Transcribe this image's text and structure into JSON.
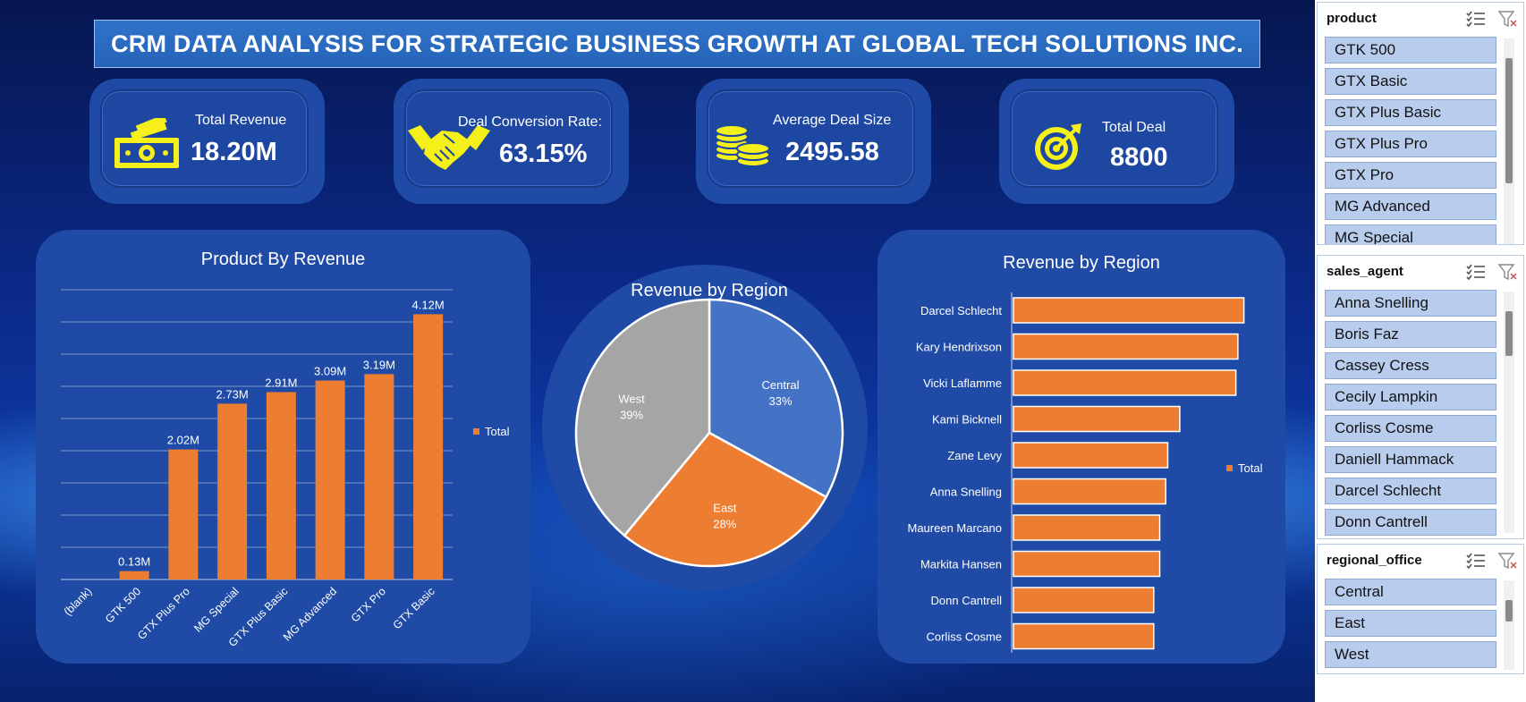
{
  "title": "CRM DATA ANALYSIS FOR STRATEGIC BUSINESS GROWTH AT GLOBAL TECH SOLUTIONS INC.",
  "kpis": {
    "revenue": {
      "label": "Total Revenue",
      "value": "18.20M",
      "icon": "cash-icon"
    },
    "conversion": {
      "label": "Deal Conversion Rate:",
      "value": "63.15%",
      "icon": "handshake-icon"
    },
    "avg_deal": {
      "label": "Average Deal Size",
      "value": "2495.58",
      "icon": "coins-icon"
    },
    "total_deal": {
      "label": "Total  Deal",
      "value": "8800",
      "icon": "target-icon"
    }
  },
  "colors": {
    "accent": "#ed7d31",
    "panel": "#1f4ba6",
    "kpi_icon": "#f5ef1a",
    "pie_central": "#4472c4",
    "pie_east": "#ed7d31",
    "pie_west": "#a5a5a5"
  },
  "chart_data": [
    {
      "type": "bar",
      "title": "Product By Revenue",
      "categories": [
        "(blank)",
        "GTK 500",
        "GTX Plus Pro",
        "MG Special",
        "GTX Plus Basic",
        "MG Advanced",
        "GTX Pro",
        "GTX Basic"
      ],
      "values": [
        0,
        0.13,
        2.02,
        2.73,
        2.91,
        3.09,
        3.19,
        4.12
      ],
      "data_labels": [
        "",
        "0.13M",
        "2.02M",
        "2.73M",
        "2.91M",
        "3.09M",
        "3.19M",
        "4.12M"
      ],
      "series": [
        {
          "name": "Total"
        }
      ],
      "ylim": [
        0,
        4.5
      ],
      "grid": true,
      "legend": "right"
    },
    {
      "type": "pie",
      "title": "Revenue by Region",
      "labels": [
        "Central",
        "East",
        "West"
      ],
      "values": [
        33,
        28,
        39
      ],
      "value_labels": [
        "33%",
        "28%",
        "39%"
      ]
    },
    {
      "type": "bar",
      "orientation": "horizontal",
      "title": "Revenue by Region",
      "categories": [
        "Darcel Schlecht",
        "Kary Hendrixson",
        "Vicki Laflamme",
        "Kami Bicknell",
        "Zane Levy",
        "Anna Snelling",
        "Maureen Marcano",
        "Markita Hansen",
        "Donn Cantrell",
        "Corliss Cosme"
      ],
      "values": [
        1.15,
        1.12,
        1.11,
        0.83,
        0.77,
        0.76,
        0.73,
        0.73,
        0.7,
        0.7
      ],
      "series": [
        {
          "name": "Total"
        }
      ],
      "xlim": [
        0,
        1.25
      ],
      "legend": "right"
    }
  ],
  "slicers": {
    "product": {
      "title": "product",
      "items": [
        "GTK 500",
        "GTX Basic",
        "GTX Plus Basic",
        "GTX Plus Pro",
        "GTX Pro",
        "MG Advanced",
        "MG Special"
      ]
    },
    "sales_agent": {
      "title": "sales_agent",
      "items": [
        "Anna Snelling",
        "Boris Faz",
        "Cassey Cress",
        "Cecily Lampkin",
        "Corliss Cosme",
        "Daniell Hammack",
        "Darcel Schlecht",
        "Donn Cantrell"
      ]
    },
    "regional_office": {
      "title": "regional_office",
      "items": [
        "Central",
        "East",
        "West"
      ]
    }
  }
}
